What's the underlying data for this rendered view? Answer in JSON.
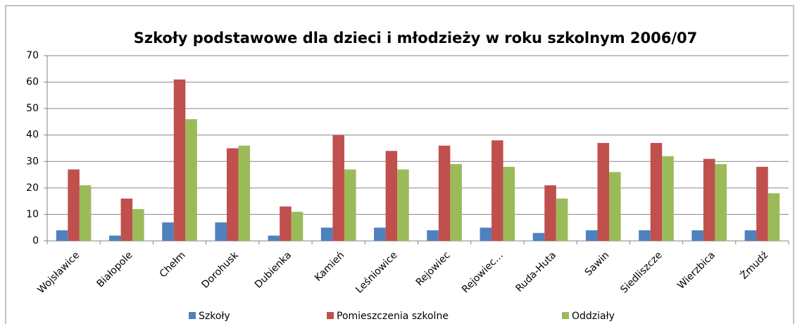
{
  "chart_data": {
    "type": "bar",
    "title": "Szkoły podstawowe dla dzieci i młodzieży w roku szkolnym 2006/07",
    "categories": [
      "Wojsławice",
      "Białopole",
      "Chełm",
      "Dorohusk",
      "Dubienka",
      "Kamień",
      "Leśniowice",
      "Rejowiec",
      "Rejowiec…",
      "Ruda-Huta",
      "Sawin",
      "Siedliszcze",
      "Wierzbica",
      "Żmudź"
    ],
    "series": [
      {
        "name": "Szkoły",
        "color": "#4f81bd",
        "values": [
          4,
          2,
          7,
          7,
          2,
          5,
          5,
          4,
          5,
          3,
          4,
          4,
          4,
          4
        ]
      },
      {
        "name": "Pomieszczenia szkolne",
        "color": "#c0504d",
        "values": [
          27,
          16,
          61,
          35,
          13,
          40,
          34,
          36,
          38,
          21,
          37,
          37,
          31,
          28
        ]
      },
      {
        "name": "Oddziały",
        "color": "#9bbb59",
        "values": [
          21,
          12,
          46,
          36,
          11,
          27,
          27,
          29,
          28,
          16,
          26,
          32,
          29,
          18
        ]
      }
    ],
    "ylim": [
      0,
      70
    ],
    "yticks": [
      0,
      10,
      20,
      30,
      40,
      50,
      60,
      70
    ],
    "grid": true,
    "legend": "bottom"
  }
}
